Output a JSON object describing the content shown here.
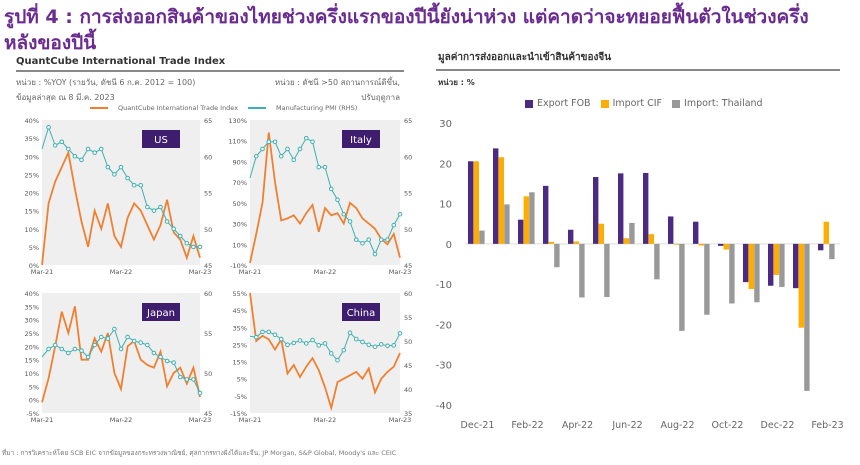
{
  "title": "รูปที่ 4 : การส่งออกสินค้าของไทยช่วงครึ่งแรกของปีนี้ยังน่าห่วง แต่คาดว่าจะทยอยฟื้นตัวในช่วงครึ่งหลังของปีนี้",
  "left": {
    "heading": "QuantCube International Trade Index",
    "unit_left_1": "หน่วย : %YOY (รายวัน, ดัชนี 6 ก.ค. 2012 = 100)",
    "unit_left_2": "ข้อมูลล่าสุด ณ 8 มี.ค. 2023",
    "unit_right_1": "หน่วย : ดัชนี >50 สถานการณ์ดีขึ้น,",
    "unit_right_2": "ปรับฤดูกาล",
    "legend": [
      "QuantCube International Trade Index",
      "Manufacturing PMI (RHS)"
    ],
    "source": "ที่มา : การวิเคราะห์โดย SCB EIC จากข้อมูลของกระทรวงพาณิชย์, ศุลกากรทางฝั่งไต้และจีน, JP Morgan, S&P Global, Moody's และ CEIC"
  },
  "colors": {
    "title": "#6b2c91",
    "export": "#4b2a83",
    "import": "#ffad00",
    "thailand": "#999999",
    "trade_index": "#f08030",
    "pmi": "#3fb0b0",
    "badge": "#3f1d6e"
  },
  "chart_data": [
    {
      "type": "line",
      "label": "US",
      "x_ticks": [
        "Mar-21",
        "Mar-22",
        "Mar-23"
      ],
      "ylim": [
        0,
        40
      ],
      "y_ticks": [
        "0%",
        "5%",
        "10%",
        "15%",
        "20%",
        "25%",
        "30%",
        "35%",
        "40%"
      ],
      "y2lim": [
        45,
        65
      ],
      "y2_ticks": [
        "45",
        "50",
        "55",
        "60",
        "65"
      ],
      "series": [
        {
          "name": "QuantCube International Trade Index",
          "values": [
            0,
            17,
            23,
            27,
            31,
            21,
            12,
            5,
            15,
            10,
            17,
            8,
            5,
            13,
            17,
            15,
            11,
            7,
            11,
            18,
            9,
            7,
            2,
            8,
            2
          ]
        },
        {
          "name": "Manufacturing PMI (RHS)",
          "values": [
            61,
            64,
            61.5,
            62,
            61,
            60,
            59.5,
            61,
            60.5,
            61,
            58.5,
            57.5,
            58.5,
            57,
            56,
            56,
            53,
            52.5,
            53,
            51,
            50,
            49,
            48,
            47.5,
            47.5
          ]
        }
      ]
    },
    {
      "type": "line",
      "label": "Italy",
      "x_ticks": [
        "Mar-21",
        "Mar-22",
        "Mar-23"
      ],
      "ylim": [
        -10,
        130
      ],
      "y_ticks": [
        "-10%",
        "10%",
        "30%",
        "50%",
        "70%",
        "90%",
        "110%",
        "130%"
      ],
      "y2lim": [
        45,
        65
      ],
      "y2_ticks": [
        "45",
        "50",
        "55",
        "60",
        "65"
      ],
      "series": [
        {
          "name": "QuantCube International Trade Index",
          "values": [
            -8,
            20,
            50,
            118,
            70,
            33,
            35,
            38,
            30,
            40,
            48,
            22,
            45,
            38,
            40,
            30,
            50,
            45,
            35,
            30,
            25,
            15,
            10,
            20,
            -3
          ]
        },
        {
          "name": "Manufacturing PMI (RHS)",
          "values": [
            57,
            60,
            61,
            62,
            62,
            60,
            61,
            59.5,
            61,
            62.5,
            62,
            58.5,
            58.5,
            55.5,
            54,
            52,
            51,
            48.5,
            48,
            48.5,
            46.5,
            48.5,
            48.5,
            50.5,
            52
          ]
        }
      ]
    },
    {
      "type": "line",
      "label": "Japan",
      "x_ticks": [
        "Mar-21",
        "Mar-22",
        "Mar-23"
      ],
      "ylim": [
        -5,
        40
      ],
      "y_ticks": [
        "-5%",
        "0%",
        "5%",
        "10%",
        "15%",
        "20%",
        "25%",
        "30%",
        "35%",
        "40%"
      ],
      "y2lim": [
        45,
        60
      ],
      "y2_ticks": [
        "45",
        "50",
        "55",
        "60"
      ],
      "series": [
        {
          "name": "QuantCube International Trade Index",
          "values": [
            -1,
            8,
            20,
            33,
            25,
            35,
            15,
            15,
            23,
            18,
            25,
            10,
            4,
            20,
            22,
            15,
            13,
            12,
            18,
            5,
            10,
            12,
            6,
            12,
            1
          ]
        },
        {
          "name": "Manufacturing PMI (RHS)",
          "values": [
            52,
            53,
            53.5,
            53,
            52.5,
            53,
            52.8,
            52,
            53.5,
            54.5,
            54.3,
            55.5,
            53,
            54.5,
            54,
            53.8,
            53.5,
            52.5,
            52,
            51.5,
            51.3,
            49.5,
            49.2,
            49.2,
            47.5
          ]
        }
      ]
    },
    {
      "type": "line",
      "label": "China",
      "x_ticks": [
        "Mar-21",
        "Mar-22",
        "Mar-23"
      ],
      "ylim": [
        -15,
        55
      ],
      "y_ticks": [
        "-15%",
        "-5%",
        "5%",
        "15%",
        "25%",
        "35%",
        "45%",
        "55%"
      ],
      "y2lim": [
        35,
        60
      ],
      "y2_ticks": [
        "35",
        "40",
        "45",
        "50",
        "55",
        "60"
      ],
      "series": [
        {
          "name": "QuantCube International Trade Index",
          "values": [
            55,
            27,
            30,
            28,
            22,
            28,
            8,
            13,
            6,
            12,
            17,
            10,
            0,
            -12,
            3,
            5,
            7,
            9,
            5,
            11,
            -3,
            5,
            9,
            12,
            20
          ]
        },
        {
          "name": "Manufacturing PMI (RHS)",
          "values": [
            51,
            50.8,
            51.9,
            51.9,
            51.3,
            50.4,
            49.2,
            49.6,
            50.1,
            49.5,
            50.2,
            49.1,
            49.5,
            47.4,
            46,
            48.1,
            51.7,
            50.4,
            49.8,
            49.2,
            48.8,
            49.3,
            49,
            49.1,
            51.6
          ]
        }
      ]
    },
    {
      "type": "bar",
      "title": "มูลค่าการส่งออกและนำเข้าสินค้าของจีน",
      "ylabel": "หน่วย : %",
      "ylim": [
        -40,
        30
      ],
      "y_ticks": [
        "30",
        "20",
        "10",
        "0",
        "-10",
        "-20",
        "-30",
        "-40"
      ],
      "legend": "top",
      "categories": [
        "Dec-21",
        "Jan-22",
        "Feb-22",
        "Mar-22",
        "Apr-22",
        "May-22",
        "Jun-22",
        "Jul-22",
        "Aug-22",
        "Sep-22",
        "Oct-22",
        "Nov-22",
        "Dec-22",
        "Jan-23",
        "Feb-23"
      ],
      "x_tick_labels": [
        "Dec-21",
        "Feb-22",
        "Apr-22",
        "Jun-22",
        "Aug-22",
        "Oct-22",
        "Dec-22",
        "Feb-23"
      ],
      "series": [
        {
          "name": "Export FOB",
          "values": [
            20.5,
            23.7,
            6,
            14.4,
            3.5,
            16.6,
            17.5,
            17.6,
            6.8,
            5.5,
            -0.5,
            -9.5,
            -10.4,
            -11,
            -1.6
          ]
        },
        {
          "name": "Import CIF",
          "values": [
            20.5,
            21.5,
            11.8,
            0.5,
            0.6,
            5,
            1.4,
            2.4,
            -0.2,
            -0.4,
            -1.4,
            -11.2,
            -7.7,
            -20.8,
            5.5
          ]
        },
        {
          "name": "Import: Thailand",
          "values": [
            3.3,
            9.8,
            12.8,
            -5.8,
            -13.3,
            -13.2,
            5.2,
            -8.8,
            -21.6,
            -17.6,
            -14.8,
            -14.5,
            -10.7,
            -36.5,
            -3.8
          ]
        }
      ]
    }
  ]
}
